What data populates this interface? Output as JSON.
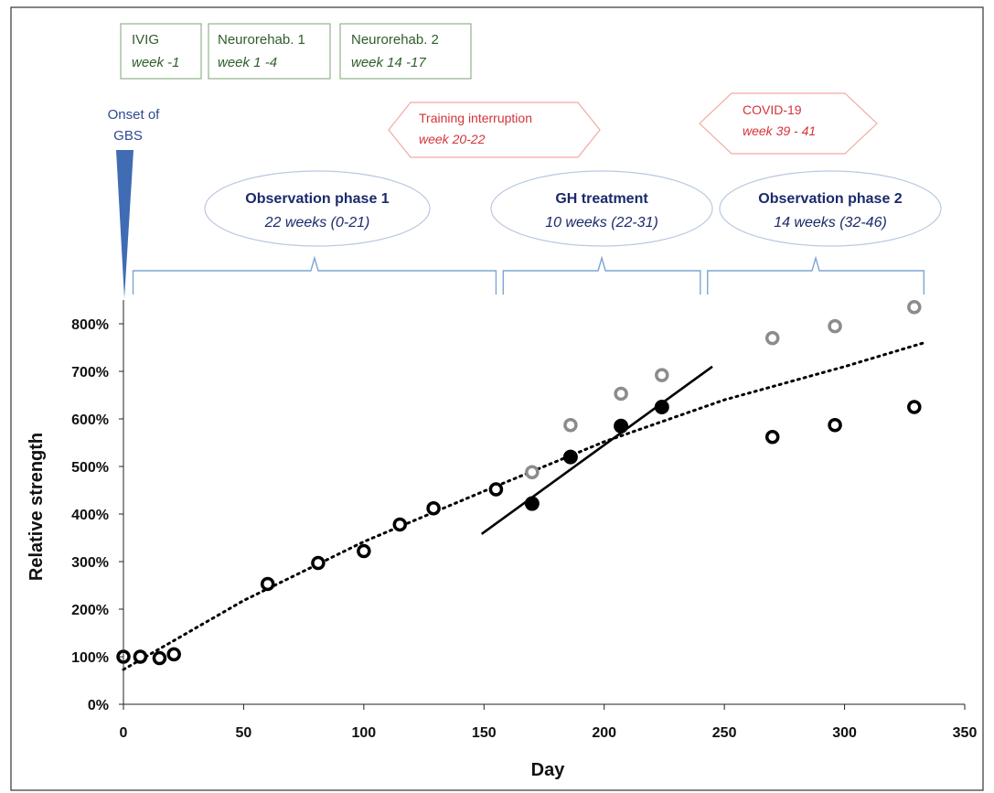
{
  "treatments": [
    {
      "name": "IVIG",
      "period": "week -1"
    },
    {
      "name": "Neurorehab. 1",
      "period": "week 1 -4"
    },
    {
      "name": "Neurorehab. 2",
      "period": "week 14 -17"
    }
  ],
  "onset": {
    "line1": "Onset of",
    "line2": "GBS"
  },
  "interruptions": [
    {
      "name": "Training interruption",
      "period": "week  20-22"
    },
    {
      "name": "COVID-19",
      "period": "week  39 - 41"
    }
  ],
  "phases": [
    {
      "name": "Observation phase 1",
      "period": "22 weeks (0-21)",
      "start_day": 4,
      "end_day": 155
    },
    {
      "name": "GH treatment",
      "period": "10 weeks (22-31)",
      "start_day": 158,
      "end_day": 240
    },
    {
      "name": "Observation phase 2",
      "period": "14 weeks (32-46)",
      "start_day": 243,
      "end_day": 333
    }
  ],
  "colors": {
    "box_border": "#8fb38a",
    "box_text": "#2e5e2a",
    "interruption_border": "#f2a9a4",
    "interruption_text": "#d3343a",
    "phase_border": "#b9c8e0",
    "phase_text": "#1b2a6b",
    "bracket": "#7fa5d3",
    "onset_marker": "#3f6cb3",
    "points_black": "#000000",
    "points_gray": "#8c8c8c"
  },
  "chart_data": {
    "type": "scatter",
    "xlabel": "Day",
    "ylabel": "Relative strength",
    "xlim": [
      0,
      350
    ],
    "ylim": [
      0,
      850
    ],
    "xticks": [
      0,
      50,
      100,
      150,
      200,
      250,
      300,
      350
    ],
    "yticks": [
      0,
      100,
      200,
      300,
      400,
      500,
      600,
      700,
      800
    ],
    "ytick_labels": [
      "0%",
      "100%",
      "200%",
      "300%",
      "400%",
      "500%",
      "600%",
      "700%",
      "800%"
    ],
    "grid": false,
    "series": [
      {
        "style": "open-black",
        "x": [
          0,
          7,
          15,
          21,
          60,
          81,
          100,
          115,
          129,
          155,
          270,
          296,
          329
        ],
        "y": [
          100,
          100,
          97,
          105,
          253,
          297,
          322,
          378,
          412,
          452,
          562,
          587,
          625
        ]
      },
      {
        "style": "filled-black",
        "x": [
          170,
          186,
          207,
          224
        ],
        "y": [
          422,
          520,
          585,
          625
        ]
      },
      {
        "style": "open-gray",
        "x": [
          170,
          186,
          207,
          224,
          270,
          296,
          329
        ],
        "y": [
          488,
          587,
          653,
          692,
          770,
          795,
          835
        ]
      }
    ],
    "trendlines": [
      {
        "style": "dotted",
        "points": [
          [
            0,
            73
          ],
          [
            50,
            218
          ],
          [
            100,
            342
          ],
          [
            150,
            448
          ],
          [
            200,
            552
          ],
          [
            250,
            640
          ],
          [
            300,
            710
          ],
          [
            333,
            760
          ]
        ]
      },
      {
        "style": "solid",
        "points": [
          [
            149,
            358
          ],
          [
            245,
            710
          ]
        ]
      }
    ]
  }
}
